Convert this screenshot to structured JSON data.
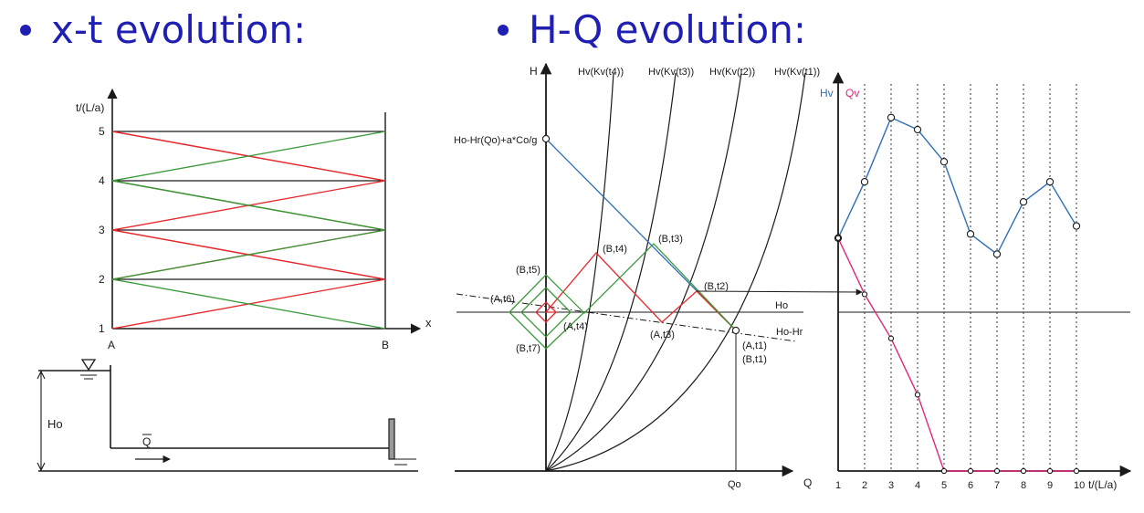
{
  "titles": {
    "left": "x-t evolution:",
    "right": "H-Q evolution:"
  },
  "colors": {
    "title": "#1f1fb4",
    "red": "#e8282b",
    "green": "#3a9a3a",
    "blue": "#2e6fb6",
    "magenta": "#e0277d",
    "black": "#1a1a1a"
  },
  "xt": {
    "y_axis_label": "t/(L/a)",
    "x_axis_label": "x",
    "y_ticks": [
      "1",
      "2",
      "3",
      "4",
      "5"
    ],
    "x_start": "A",
    "x_end": "B"
  },
  "pipe": {
    "head_label": "Ho",
    "flow_label": "Q"
  },
  "hq": {
    "y_axis_label": "H",
    "x_axis_label": "Q",
    "q0_label": "Qo",
    "surge_label": "Ho-Hr(Qo)+a*Co/g",
    "ho_label": "Ho",
    "ho_hr_label": "Ho-Hr",
    "curve_labels": [
      "Hv(Kv(t4))",
      "Hv(Kv(t3))",
      "Hv(Kv(t2))",
      "Hv(Kv(t1))"
    ],
    "points": {
      "b_t5": "(B,t5)",
      "a_t6": "(A,t6)",
      "a_t4": "(A,t4)",
      "b_t7": "(B,t7)",
      "b_t4": "(B,t4)",
      "b_t3": "(B,t3)",
      "b_t2": "(B,t2)",
      "a_t3": "(A,t3)",
      "a_t1": "(A,t1)",
      "b_t1": "(B,t1)"
    }
  },
  "timeplot": {
    "hv_label": "Hv",
    "qv_label": "Qv",
    "x_axis_label": "t/(L/a)",
    "x_ticks": [
      "1",
      "2",
      "3",
      "4",
      "5",
      "6",
      "7",
      "8",
      "9",
      "10"
    ]
  },
  "chart_data": {
    "type": "line",
    "x": [
      1,
      2,
      3,
      4,
      5,
      6,
      7,
      8,
      9,
      10
    ],
    "series": [
      {
        "name": "Hv",
        "values": [
          0.58,
          0.72,
          0.88,
          0.85,
          0.77,
          0.59,
          0.54,
          0.67,
          0.72,
          0.61
        ]
      },
      {
        "name": "Qv",
        "values": [
          0.58,
          0.44,
          0.33,
          0.19,
          0.0,
          0.0,
          0.0,
          0.0,
          0.0,
          0.0
        ]
      }
    ],
    "reference_line": "Ho",
    "xlabel": "t/(L/a)",
    "ylabel": "",
    "grid": "vertical-dotted"
  }
}
